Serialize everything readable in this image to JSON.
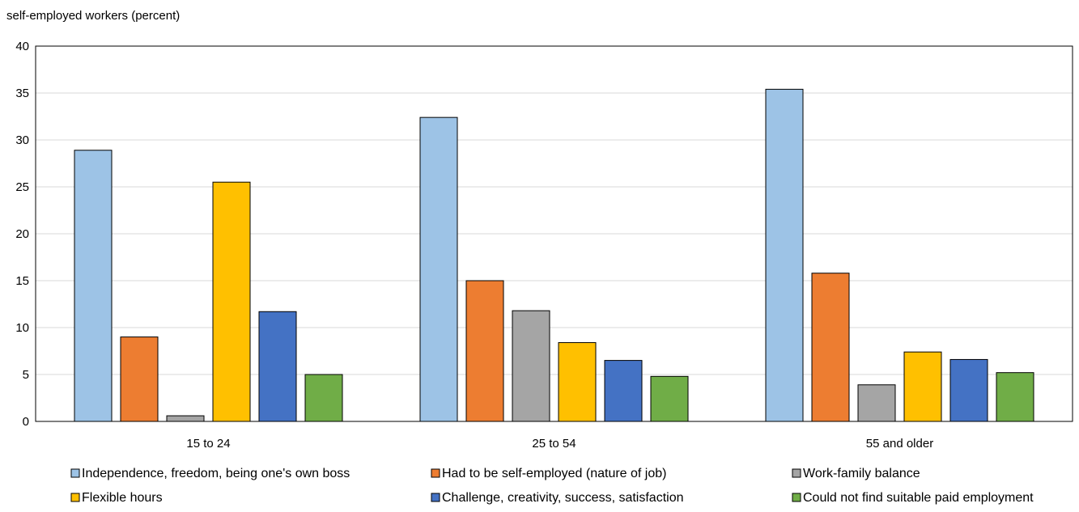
{
  "chart_data": {
    "type": "bar",
    "title": "",
    "ylabel": "self-employed workers (percent)",
    "xlabel": "",
    "ylim": [
      0,
      40
    ],
    "yticks": [
      0,
      5,
      10,
      15,
      20,
      25,
      30,
      35,
      40
    ],
    "grid": true,
    "legend_position": "bottom",
    "categories": [
      "15 to 24",
      "25 to 54",
      "55 and older"
    ],
    "series": [
      {
        "name": "Independence, freedom, being one's own boss",
        "color": "#9DC3E6",
        "values": [
          28.9,
          32.4,
          35.4
        ]
      },
      {
        "name": "Had to be self-employed (nature of job)",
        "color": "#ED7D31",
        "values": [
          9.0,
          15.0,
          15.8
        ]
      },
      {
        "name": "Work-family balance",
        "color": "#A5A5A5",
        "values": [
          0.6,
          11.8,
          3.9
        ]
      },
      {
        "name": "Flexible hours",
        "color": "#FFC000",
        "values": [
          25.5,
          8.4,
          7.4
        ]
      },
      {
        "name": "Challenge, creativity, success, satisfaction",
        "color": "#4472C4",
        "values": [
          11.7,
          6.5,
          6.6
        ]
      },
      {
        "name": "Could not find suitable paid employment",
        "color": "#70AD47",
        "values": [
          5.0,
          4.8,
          5.2
        ]
      }
    ]
  }
}
